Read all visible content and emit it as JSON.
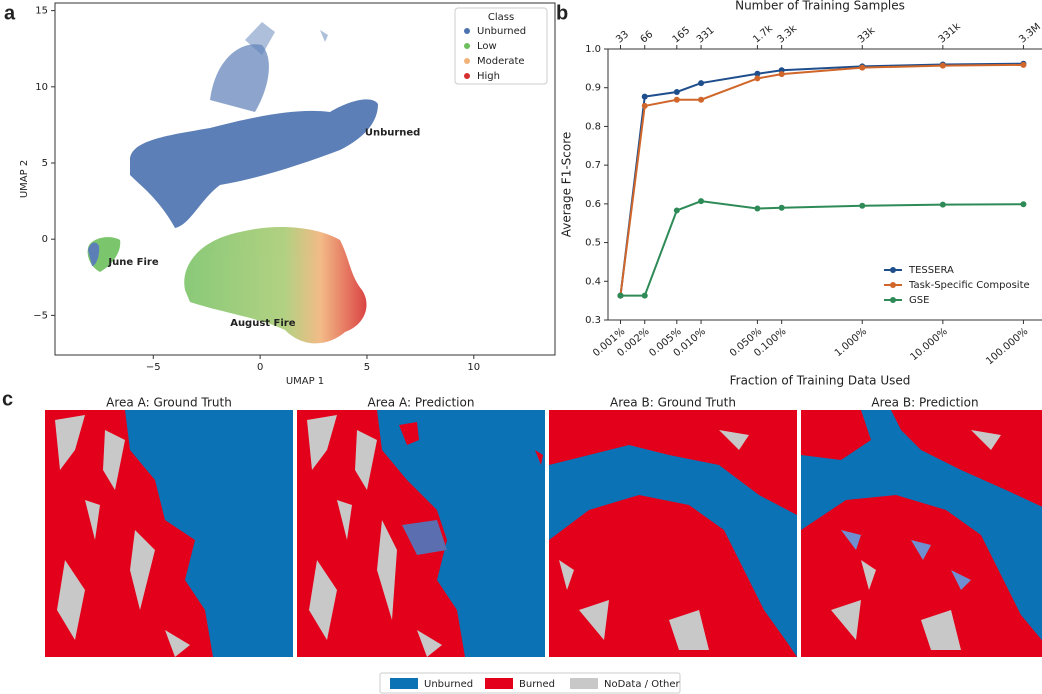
{
  "chart_data": [
    {
      "type": "scatter",
      "panel_label": "a",
      "xlabel": "UMAP 1",
      "ylabel": "UMAP 2",
      "xlim": [
        -9.6,
        13.8
      ],
      "ylim": [
        -7.6,
        15.5
      ],
      "xticks": [
        {
          "value": -5,
          "label": "−5"
        },
        0,
        5,
        10
      ],
      "yticks": [
        {
          "value": -5,
          "label": "−5"
        },
        0,
        5,
        10,
        15
      ],
      "legend": {
        "title": "Class",
        "entries": [
          {
            "name": "Unburned",
            "color": "#4c72b0"
          },
          {
            "name": "Low",
            "color": "#6dbf5e"
          },
          {
            "name": "Moderate",
            "color": "#f2b37a"
          },
          {
            "name": "High",
            "color": "#d62f2f"
          }
        ]
      },
      "annotations": [
        {
          "text": "Unburned",
          "x": 4.9,
          "y": 7
        },
        {
          "text": "June Fire",
          "x": -7.1,
          "y": -1.5
        },
        {
          "text": "August Fire",
          "x": -1.4,
          "y": -5.5
        }
      ]
    },
    {
      "type": "line",
      "panel_label": "b",
      "title": "Number of Training Samples",
      "xlabel": "Fraction of Training Data Used",
      "ylabel": "Average F1-Score",
      "log_x": true,
      "xlim": [
        0.0007,
        170
      ],
      "ylim": [
        0.3,
        1.0
      ],
      "x": [
        0.001,
        0.002,
        0.005,
        0.01,
        0.05,
        0.1,
        1,
        10,
        100
      ],
      "xticks": [
        {
          "value": 0.001,
          "label": "0.001%"
        },
        {
          "value": 0.002,
          "label": "0.002%"
        },
        {
          "value": 0.005,
          "label": "0.005%"
        },
        {
          "value": 0.01,
          "label": "0.010%"
        },
        {
          "value": 0.05,
          "label": "0.050%"
        },
        {
          "value": 0.1,
          "label": "0.100%"
        },
        {
          "value": 1,
          "label": "1.000%"
        },
        {
          "value": 10,
          "label": "10.000%"
        },
        {
          "value": 100,
          "label": "100.000%"
        }
      ],
      "top_xticks": [
        {
          "value": 0.001,
          "label": "33"
        },
        {
          "value": 0.002,
          "label": "66"
        },
        {
          "value": 0.005,
          "label": "165"
        },
        {
          "value": 0.01,
          "label": "331"
        },
        {
          "value": 0.05,
          "label": "1.7k"
        },
        {
          "value": 0.1,
          "label": "3.3k"
        },
        {
          "value": 1,
          "label": "33k"
        },
        {
          "value": 10,
          "label": "331k"
        },
        {
          "value": 100,
          "label": "3.3M"
        }
      ],
      "yticks": [
        0.3,
        0.4,
        0.5,
        0.6,
        0.7,
        0.8,
        0.9,
        {
          "value": 1,
          "label": "1.0"
        }
      ],
      "legend_position": "lower right",
      "series": [
        {
          "name": "TESSERA",
          "color": "#1f4e8c",
          "values": [
            0.363,
            0.877,
            0.889,
            0.912,
            0.936,
            0.945,
            0.955,
            0.96,
            0.962
          ]
        },
        {
          "name": "Task-Specific Composite",
          "color": "#d0662a",
          "values": [
            0.363,
            0.853,
            0.869,
            0.869,
            0.924,
            0.935,
            0.952,
            0.957,
            0.959
          ]
        },
        {
          "name": "GSE",
          "color": "#2e8b57",
          "values": [
            0.363,
            0.363,
            0.583,
            0.607,
            0.588,
            0.59,
            0.595,
            0.598,
            0.599
          ]
        }
      ]
    }
  ],
  "maps": {
    "panel_label": "c",
    "panels": [
      {
        "title": "Area A: Ground Truth"
      },
      {
        "title": "Area A: Prediction"
      },
      {
        "title": "Area B: Ground Truth"
      },
      {
        "title": "Area B: Prediction"
      }
    ],
    "legend": [
      {
        "name": "Unburned",
        "color": "#0b72b5"
      },
      {
        "name": "Burned",
        "color": "#e3001b"
      },
      {
        "name": "NoData / Other",
        "color": "#c8c8c8"
      }
    ]
  }
}
